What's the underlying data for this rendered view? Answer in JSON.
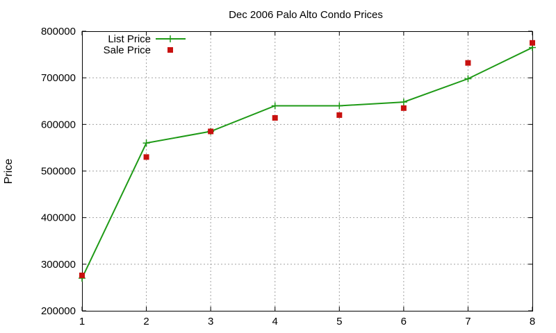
{
  "chart_data": {
    "type": "line",
    "title": "Dec 2006 Palo Alto Condo Prices",
    "xlabel": "",
    "ylabel": "Price",
    "xlim": [
      1,
      8
    ],
    "ylim": [
      200000,
      800000
    ],
    "x_ticks": [
      1,
      2,
      3,
      4,
      5,
      6,
      7,
      8
    ],
    "y_ticks": [
      200000,
      300000,
      400000,
      500000,
      600000,
      700000,
      800000
    ],
    "grid": true,
    "legend": "top-left",
    "series": [
      {
        "name": "List Price",
        "style": "lines+points",
        "marker": "plus",
        "color": "#1e9a16",
        "x": [
          1,
          2,
          3,
          4,
          5,
          6,
          7,
          8
        ],
        "y": [
          270000,
          560000,
          585000,
          640000,
          640000,
          648000,
          698000,
          765000
        ]
      },
      {
        "name": "Sale Price",
        "style": "points",
        "marker": "square",
        "color": "#c8110f",
        "x": [
          1,
          2,
          3,
          4,
          5,
          6,
          7,
          8
        ],
        "y": [
          276000,
          530000,
          585000,
          614000,
          620000,
          635000,
          732000,
          775000
        ]
      }
    ]
  }
}
